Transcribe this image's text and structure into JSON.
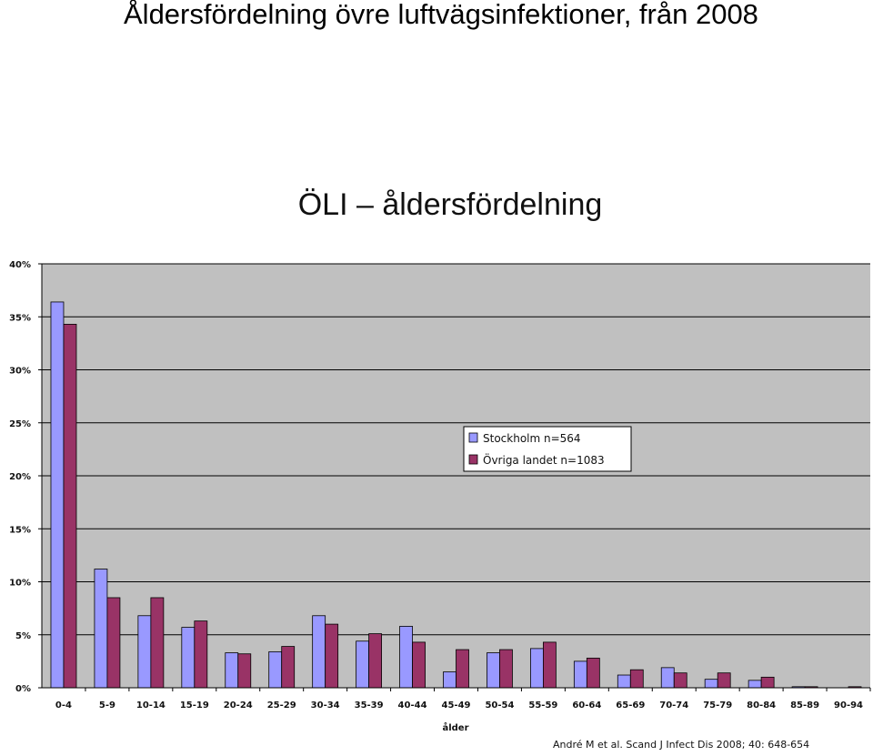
{
  "slide": {
    "title": "Åldersfördelning övre luftvägsinfektioner, från 2008"
  },
  "chart_data": {
    "type": "bar",
    "title": "ÖLI – åldersfördelning",
    "xlabel": "ålder",
    "ylabel": "",
    "categories": [
      "0-4",
      "5-9",
      "10-14",
      "15-19",
      "20-24",
      "25-29",
      "30-34",
      "35-39",
      "40-44",
      "45-49",
      "50-54",
      "55-59",
      "60-64",
      "65-69",
      "70-74",
      "75-79",
      "80-84",
      "85-89",
      "90-94"
    ],
    "y_ticks": [
      "0%",
      "5%",
      "10%",
      "15%",
      "20%",
      "25%",
      "30%",
      "35%",
      "40%"
    ],
    "ylim": [
      0,
      40
    ],
    "grid": true,
    "legend_position": "center-right",
    "series": [
      {
        "name": "Stockholm n=564",
        "color": "#9999ff",
        "values": [
          36.4,
          11.2,
          6.8,
          5.7,
          3.3,
          3.4,
          6.8,
          4.4,
          5.8,
          1.5,
          3.3,
          3.7,
          2.5,
          1.2,
          1.9,
          0.8,
          0.7,
          0.1,
          0.0
        ]
      },
      {
        "name": "Övriga landet n=1083",
        "color": "#993366",
        "values": [
          34.3,
          8.5,
          8.5,
          6.3,
          3.2,
          3.9,
          6.0,
          5.1,
          4.3,
          3.6,
          3.6,
          4.3,
          2.8,
          1.7,
          1.4,
          1.4,
          1.0,
          0.1,
          0.1
        ]
      }
    ],
    "colors": {
      "plot_background": "#c0c0c0",
      "gridline": "#000000"
    }
  },
  "citation": "André M et al. Scand J Infect Dis 2008; 40: 648-654"
}
